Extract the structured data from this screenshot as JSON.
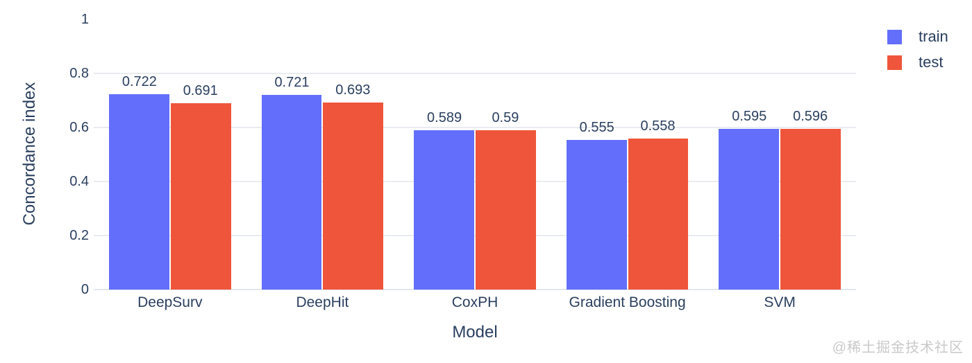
{
  "watermark": "@稀土掘金技术社区",
  "chart_data": {
    "type": "bar",
    "title": "",
    "xlabel": "Model",
    "ylabel": "Concordance index",
    "categories": [
      "DeepSurv",
      "DeepHit",
      "CoxPH",
      "Gradient Boosting",
      "SVM"
    ],
    "series": [
      {
        "name": "train",
        "color": "#636efa",
        "values": [
          0.722,
          0.721,
          0.589,
          0.555,
          0.595
        ]
      },
      {
        "name": "test",
        "color": "#ef553b",
        "values": [
          0.691,
          0.693,
          0.59,
          0.558,
          0.596
        ]
      }
    ],
    "ylim": [
      0,
      1
    ],
    "yticks": [
      0,
      0.2,
      0.4,
      0.6,
      0.8,
      1
    ],
    "gridline_ticks": [
      0.2,
      0.4,
      0.6,
      0.8
    ],
    "grid": true,
    "bar_labels": true,
    "legend_position": "top-right",
    "text_color": "#2a3f5f",
    "grid_color": "#e9ebf1",
    "background_color": "#ffffff"
  }
}
